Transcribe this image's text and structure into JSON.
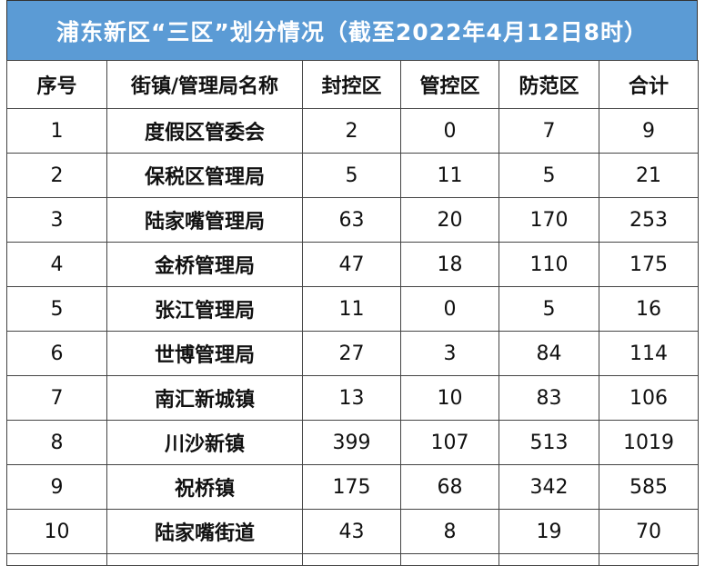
{
  "title": "浦东新区“三区”划分情况（截至2022年4月12日8时）",
  "headers": [
    "序号",
    "街镇/管理局名称",
    "封控区",
    "管控区",
    "防范区",
    "合计"
  ],
  "rows": [
    {
      "idx": "1",
      "name": "度假区管委会",
      "fengkong": "2",
      "guankong": "0",
      "fangfan": "7",
      "total": "9"
    },
    {
      "idx": "2",
      "name": "保税区管理局",
      "fengkong": "5",
      "guankong": "11",
      "fangfan": "5",
      "total": "21"
    },
    {
      "idx": "3",
      "name": "陆家嘴管理局",
      "fengkong": "63",
      "guankong": "20",
      "fangfan": "170",
      "total": "253"
    },
    {
      "idx": "4",
      "name": "金桥管理局",
      "fengkong": "47",
      "guankong": "18",
      "fangfan": "110",
      "total": "175"
    },
    {
      "idx": "5",
      "name": "张江管理局",
      "fengkong": "11",
      "guankong": "0",
      "fangfan": "5",
      "total": "16"
    },
    {
      "idx": "6",
      "name": "世博管理局",
      "fengkong": "27",
      "guankong": "3",
      "fangfan": "84",
      "total": "114"
    },
    {
      "idx": "7",
      "name": "南汇新城镇",
      "fengkong": "13",
      "guankong": "10",
      "fangfan": "83",
      "total": "106"
    },
    {
      "idx": "8",
      "name": "川沙新镇",
      "fengkong": "399",
      "guankong": "107",
      "fangfan": "513",
      "total": "1019"
    },
    {
      "idx": "9",
      "name": "祝桥镇",
      "fengkong": "175",
      "guankong": "68",
      "fangfan": "342",
      "total": "585"
    },
    {
      "idx": "10",
      "name": "陆家嘴街道",
      "fengkong": "43",
      "guankong": "8",
      "fangfan": "19",
      "total": "70"
    }
  ]
}
